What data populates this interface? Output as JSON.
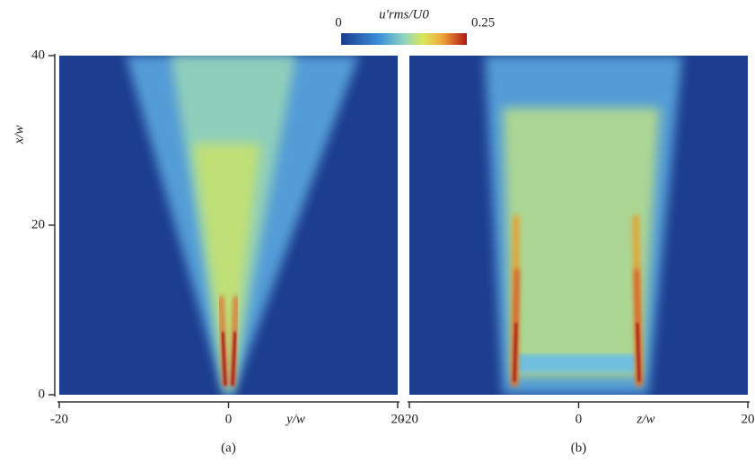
{
  "chart_data": [
    {
      "type": "contour",
      "xlabel": "y/w",
      "ylabel": "x/w",
      "caption": "(a)",
      "xlim": [
        -20,
        20
      ],
      "ylim": [
        0,
        40
      ],
      "xticks": [
        -20,
        0,
        20
      ],
      "yticks": [
        0,
        20,
        40
      ]
    },
    {
      "type": "contour",
      "xlabel": "z/w",
      "caption": "(b)",
      "xlim": [
        -20,
        20
      ],
      "ylim": [
        0,
        40
      ],
      "xticks": [
        -20,
        0,
        20
      ]
    }
  ],
  "colorbar": {
    "label": "u'rms/U0",
    "lim": [
      0,
      0.25
    ],
    "ticks": [
      0,
      0.25
    ]
  }
}
